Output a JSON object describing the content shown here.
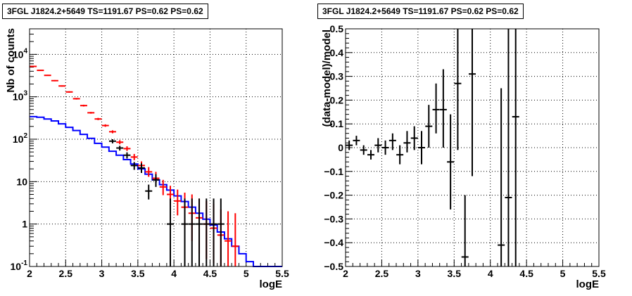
{
  "colors": {
    "data": "#000000",
    "model": "#0000ff",
    "red": "#ff0000",
    "grid": "#000000"
  },
  "chart_data": [
    {
      "type": "scatter",
      "title": "3FGL J1824.2+5649 TS=1191.67 PS=0.62 PS=0.62",
      "xlabel": "logE",
      "ylabel": "Nb of counts",
      "xlim": [
        2,
        5.5
      ],
      "ylim": [
        0.1,
        40000
      ],
      "yscale": "log",
      "grid": true,
      "xticks": [
        2,
        2.5,
        3,
        3.5,
        4,
        4.5,
        5,
        5.5
      ],
      "xticklabels": [
        "2",
        "2.5",
        "3",
        "3.5",
        "4",
        "4.5",
        "5",
        "5.5"
      ],
      "yticks": [
        0.1,
        1,
        10,
        100,
        1000,
        10000
      ],
      "ytick_base": "10",
      "ytick_exps": [
        "-1",
        "",
        "",
        "2",
        "3",
        "4"
      ],
      "ytick_plain": [
        "",
        "1",
        "10",
        "",
        "",
        ""
      ],
      "series": [
        {
          "kind": "step",
          "color": "blue",
          "bins": [
            2,
            2.1,
            2.2,
            2.3,
            2.4,
            2.5,
            2.6,
            2.7,
            2.8,
            2.9,
            3,
            3.1,
            3.2,
            3.3,
            3.4,
            3.5,
            3.6,
            3.7,
            3.8,
            3.9,
            4,
            4.1,
            4.2,
            4.3,
            4.4,
            4.5,
            4.6,
            4.7,
            4.8,
            4.9,
            5,
            5.1,
            5.2,
            5.3,
            5.4,
            5.5
          ],
          "values": [
            340,
            330,
            300,
            270,
            230,
            190,
            160,
            130,
            105,
            80,
            65,
            52,
            42,
            33,
            26,
            20,
            15,
            11,
            8.5,
            6.3,
            4.6,
            3.4,
            2.5,
            1.8,
            1.3,
            0.95,
            0.65,
            0.45,
            0.3,
            0.2,
            0.13,
            0.1,
            0.1,
            0.1,
            0.1
          ]
        },
        {
          "kind": "errorbar",
          "color": "red",
          "x": [
            2.05,
            2.15,
            2.25,
            2.35,
            2.45,
            2.55,
            2.65,
            2.75,
            2.85,
            2.95,
            3.05,
            3.15,
            3.25,
            3.35,
            3.45,
            3.55,
            3.65,
            3.75,
            3.85,
            3.95,
            4.05,
            4.15,
            4.25,
            4.35,
            4.45,
            4.55,
            4.65,
            4.75,
            4.85
          ],
          "y": [
            5200,
            4200,
            3200,
            2400,
            1800,
            1300,
            900,
            620,
            420,
            300,
            210,
            150,
            85,
            60,
            38,
            24,
            17,
            12,
            7.5,
            5,
            3.5,
            2.5,
            1.8,
            1.4,
            1,
            0.8,
            0.55,
            0.4,
            0.3
          ],
          "lo": [
            5050,
            4080,
            3100,
            2320,
            1740,
            1250,
            860,
            590,
            400,
            282,
            196,
            138,
            76,
            53,
            32,
            19,
            13,
            8.5,
            4.8,
            2.8,
            1.6,
            0.8,
            0.4,
            0.2,
            0.15,
            0.12,
            0.1,
            0.1,
            0.1
          ],
          "hi": [
            5350,
            4320,
            3300,
            2480,
            1860,
            1350,
            940,
            650,
            440,
            318,
            224,
            162,
            95,
            68,
            45,
            30,
            22,
            17,
            11,
            8,
            6.5,
            5.5,
            5,
            4,
            3.5,
            3,
            2.2,
            2,
            1.8
          ]
        },
        {
          "kind": "errorbar",
          "color": "data",
          "x": [
            3.15,
            3.25,
            3.35,
            3.45,
            3.55,
            3.65,
            3.75,
            3.95,
            4.15,
            4.25,
            4.35,
            4.45,
            4.55,
            4.65
          ],
          "y": [
            90,
            62,
            42,
            24,
            21,
            6,
            11,
            1,
            1,
            1,
            1,
            1,
            1,
            1
          ],
          "lo": [
            80,
            54,
            35,
            19,
            16,
            3.8,
            7.5,
            0.1,
            0.1,
            0.1,
            0.1,
            0.1,
            0.1,
            0.1
          ],
          "hi": [
            100,
            70,
            49,
            29,
            27,
            8.5,
            15,
            4,
            4,
            4,
            4,
            4,
            4,
            4
          ]
        }
      ]
    },
    {
      "type": "scatter",
      "title": "3FGL J1824.2+5649 TS=1191.67 PS=0.62 PS=0.62",
      "xlabel": "logE",
      "ylabel": "(data-model)/model",
      "xlim": [
        2,
        5.5
      ],
      "ylim": [
        -0.5,
        0.5
      ],
      "grid": true,
      "xticks": [
        2,
        2.5,
        3,
        3.5,
        4,
        4.5,
        5,
        5.5
      ],
      "xticklabels": [
        "2",
        "2.5",
        "3",
        "3.5",
        "4",
        "4.5",
        "5",
        "5.5"
      ],
      "yticks": [
        -0.5,
        -0.4,
        -0.3,
        -0.2,
        -0.1,
        0,
        0.1,
        0.2,
        0.3,
        0.4,
        0.5
      ],
      "yticklabels": [
        "−0.5",
        "−0.4",
        "−0.3",
        "−0.2",
        "−0.1",
        "0",
        "0.1",
        "0.2",
        "0.3",
        "0.4",
        "0.5"
      ],
      "series": [
        {
          "kind": "errorbar",
          "color": "data",
          "x": [
            2.05,
            2.15,
            2.25,
            2.35,
            2.45,
            2.55,
            2.65,
            2.75,
            2.85,
            2.95,
            3.05,
            3.15,
            3.25,
            3.35,
            3.45,
            3.55,
            3.65,
            3.75,
            4.15,
            4.25,
            4.35
          ],
          "y": [
            0.01,
            0.03,
            -0.01,
            -0.03,
            0.01,
            0.0,
            0.03,
            -0.03,
            0.02,
            0.04,
            0.0,
            0.09,
            0.16,
            0.16,
            -0.06,
            0.27,
            -0.46,
            0.31,
            -0.41,
            -0.21,
            0.13
          ],
          "lo": [
            -0.01,
            0.01,
            -0.03,
            -0.05,
            -0.02,
            -0.03,
            -0.01,
            -0.07,
            -0.02,
            -0.01,
            -0.07,
            0.0,
            0.06,
            0.0,
            -0.26,
            -0.01,
            -0.8,
            -0.12,
            -0.8,
            -0.8,
            -0.8
          ],
          "hi": [
            0.03,
            0.05,
            0.01,
            -0.01,
            0.04,
            0.03,
            0.06,
            0.01,
            0.07,
            0.09,
            0.07,
            0.18,
            0.27,
            0.33,
            0.14,
            0.7,
            -0.2,
            0.8,
            0.25,
            0.8,
            0.8
          ]
        }
      ]
    }
  ]
}
